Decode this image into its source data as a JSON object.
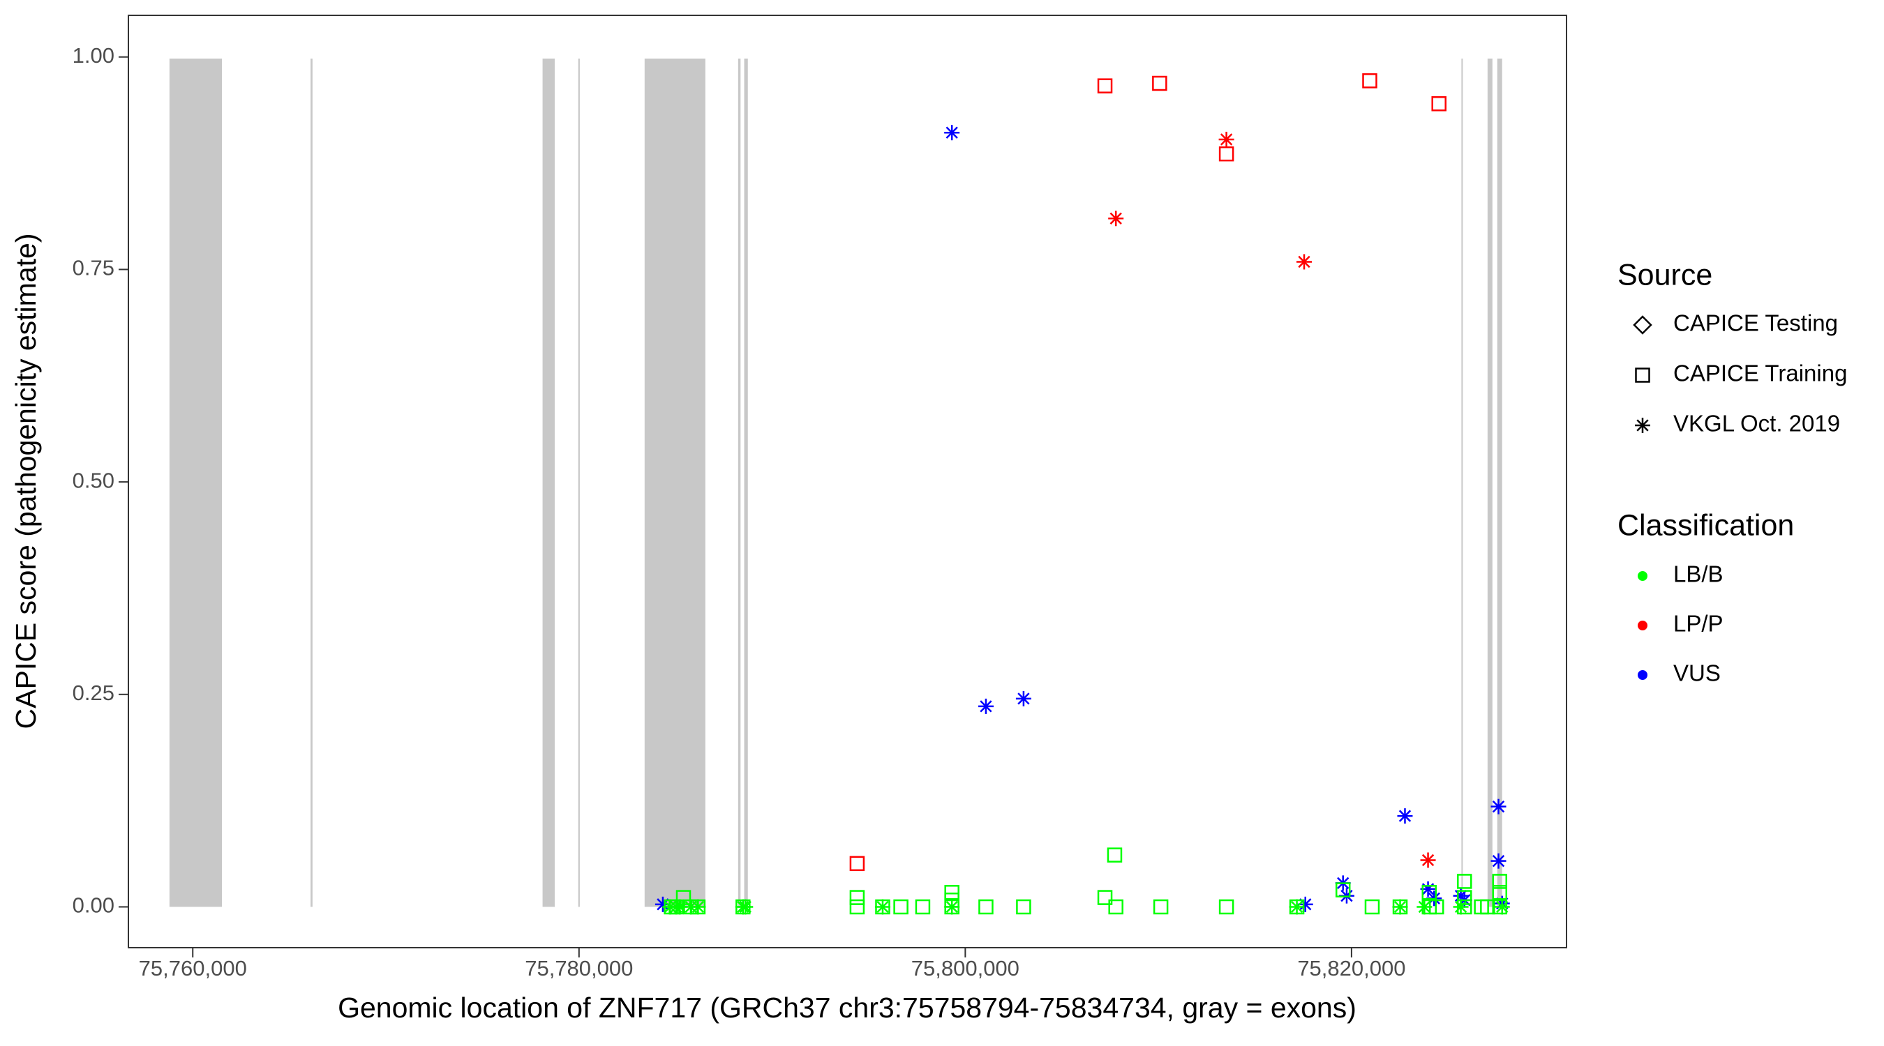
{
  "chart_data": {
    "type": "scatter",
    "x_label": "Genomic location of ZNF717 (GRCh37 chr3:75758794-75834734, gray = exons)",
    "y_label": "CAPICE score (pathogenicity estimate)",
    "xlim": [
      75756667,
      75831132
    ],
    "ylim": [
      -0.048,
      1.049
    ],
    "xticks": [
      {
        "value": 75760000,
        "label": "75,760,000"
      },
      {
        "value": 75780000,
        "label": "75,780,000"
      },
      {
        "value": 75800000,
        "label": "75,800,000"
      },
      {
        "value": 75820000,
        "label": "75,820,000"
      }
    ],
    "yticks": [
      {
        "value": 0,
        "label": "0.00"
      },
      {
        "value": 0.25,
        "label": "0.25"
      },
      {
        "value": 0.5,
        "label": "0.50"
      },
      {
        "value": 0.75,
        "label": "0.75"
      },
      {
        "value": 1,
        "label": "1.00"
      }
    ],
    "grid": false,
    "exon_color": "#c8c8c8",
    "exons": [
      [
        75758794,
        75761509
      ],
      [
        75766100,
        75766200
      ],
      [
        75778113,
        75778742
      ],
      [
        75779960,
        75780040
      ],
      [
        75783396,
        75786541
      ],
      [
        75788239,
        75788365
      ],
      [
        75788553,
        75788742
      ],
      [
        75825690,
        75825760
      ],
      [
        75827044,
        75827296
      ],
      [
        75827547,
        75827798
      ]
    ],
    "source_legend": {
      "title": "Source",
      "items": [
        "CAPICE Testing",
        "CAPICE Training",
        "VKGL Oct. 2019"
      ],
      "symbols": [
        "diamond",
        "square",
        "asterisk"
      ]
    },
    "classification_legend": {
      "title": "Classification",
      "items": [
        "LB/B",
        "LP/P",
        "VUS"
      ],
      "colors": [
        "#00ff00",
        "#ff0000",
        "#0000ff"
      ]
    },
    "points": {
      "x": [
        75807233,
        75810063,
        75813522,
        75820943,
        75824528,
        75794402,
        75813522,
        75807799,
        75817547,
        75823962,
        75799308,
        75801069,
        75803019,
        75822767,
        75827610,
        75827610,
        75819560,
        75819749,
        75823962,
        75824276,
        75825660,
        75825849,
        75817610,
        75784340,
        75827799,
        75784780,
        75785031,
        75785409,
        75785786,
        75786163,
        75788491,
        75794402,
        75794402,
        75795723,
        75796667,
        75797799,
        75799308,
        75799308,
        75799308,
        75801069,
        75803019,
        75807233,
        75807736,
        75807799,
        75810126,
        75813522,
        75817170,
        75819560,
        75821069,
        75822516,
        75824025,
        75824025,
        75824402,
        75825849,
        75825849,
        75825849,
        75826729,
        75827044,
        75827673,
        75827673,
        75827673,
        75784717,
        75785031,
        75785220,
        75785786,
        75786163,
        75788491,
        75788616,
        75795723,
        75799308,
        75817170,
        75822516,
        75823774,
        75825660,
        75827799
      ],
      "y": [
        0.966,
        0.969,
        0.886,
        0.972,
        0.945,
        0.051,
        0.903,
        0.81,
        0.759,
        0.055,
        0.911,
        0.236,
        0.245,
        0.107,
        0.118,
        0.054,
        0.028,
        0.013,
        0.021,
        0.01,
        0.013,
        0.008,
        0.003,
        0.003,
        0.004,
        0,
        0,
        0.011,
        0,
        0,
        0,
        0.011,
        0,
        0,
        0,
        0,
        0.017,
        0.008,
        0,
        0,
        0,
        0.011,
        0.061,
        0,
        0,
        0,
        0,
        0.02,
        0,
        0,
        0.017,
        0,
        0,
        0.03,
        0.011,
        0,
        0,
        0,
        0.03,
        0.017,
        0,
        0,
        0,
        0,
        0,
        0,
        0,
        0,
        0,
        0,
        0,
        0,
        0,
        0,
        0
      ],
      "source": [
        1,
        1,
        1,
        1,
        1,
        1,
        2,
        2,
        2,
        2,
        2,
        2,
        2,
        2,
        2,
        2,
        2,
        2,
        2,
        2,
        2,
        2,
        2,
        2,
        2,
        1,
        1,
        1,
        1,
        1,
        1,
        1,
        1,
        1,
        1,
        1,
        1,
        1,
        1,
        1,
        1,
        1,
        1,
        1,
        1,
        1,
        1,
        1,
        1,
        1,
        1,
        1,
        1,
        1,
        1,
        1,
        1,
        1,
        1,
        1,
        1,
        2,
        2,
        2,
        2,
        2,
        2,
        2,
        2,
        2,
        2,
        2,
        2,
        2,
        2
      ],
      "classification": [
        1,
        1,
        1,
        1,
        1,
        1,
        1,
        1,
        1,
        1,
        2,
        2,
        2,
        2,
        2,
        2,
        2,
        2,
        2,
        2,
        2,
        2,
        2,
        2,
        2,
        0,
        0,
        0,
        0,
        0,
        0,
        0,
        0,
        0,
        0,
        0,
        0,
        0,
        0,
        0,
        0,
        0,
        0,
        0,
        0,
        0,
        0,
        0,
        0,
        0,
        0,
        0,
        0,
        0,
        0,
        0,
        0,
        0,
        0,
        0,
        0,
        0,
        0,
        0,
        0,
        0,
        0,
        0,
        0,
        0,
        0,
        0,
        0,
        0,
        0
      ]
    }
  }
}
